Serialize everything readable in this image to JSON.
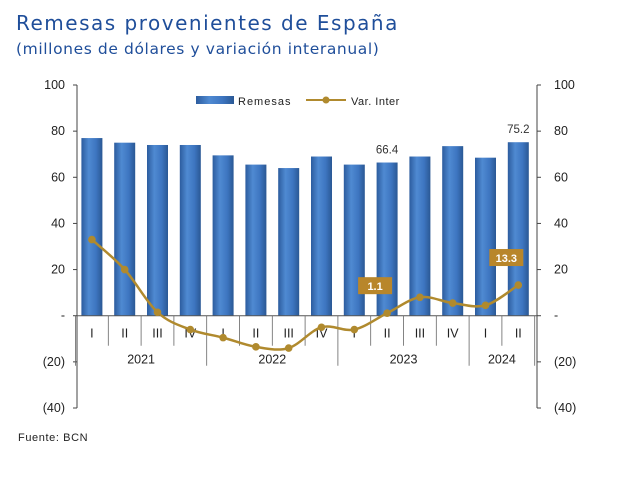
{
  "title": "Remesas provenientes de España",
  "subtitle": "(millones de dólares y variación interanual)",
  "source": "Fuente: BCN",
  "chart_data": {
    "type": "bar+line",
    "categories": [
      "I",
      "II",
      "III",
      "IV",
      "I",
      "II",
      "III",
      "IV",
      "I",
      "II",
      "III",
      "IV",
      "I",
      "II"
    ],
    "years": [
      {
        "label": "2021",
        "start": 0,
        "end": 3
      },
      {
        "label": "2022",
        "start": 4,
        "end": 7
      },
      {
        "label": "2023",
        "start": 8,
        "end": 11
      },
      {
        "label": "2024",
        "start": 12,
        "end": 13
      }
    ],
    "series": [
      {
        "name": "Remesas",
        "type": "bar",
        "axis": "left",
        "values": [
          77.0,
          75.0,
          74.0,
          74.0,
          69.5,
          65.5,
          64.0,
          69.0,
          65.5,
          66.4,
          69.0,
          73.5,
          68.5,
          75.2
        ]
      },
      {
        "name": "Var. Inter",
        "type": "line",
        "axis": "right",
        "values": [
          33.0,
          20.0,
          1.5,
          -6.0,
          -9.5,
          -13.5,
          -14.0,
          -5.0,
          -6.0,
          1.1,
          8.0,
          5.5,
          4.5,
          13.3
        ]
      }
    ],
    "bar_labels": [
      {
        "index": 9,
        "text": "66.4"
      },
      {
        "index": 13,
        "text": "75.2"
      }
    ],
    "line_labels": [
      {
        "index": 9,
        "text": "1.1"
      },
      {
        "index": 13,
        "text": "13.3"
      }
    ],
    "y_left": {
      "min": -40,
      "max": 100,
      "ticks": [
        {
          "v": 100,
          "t": "100"
        },
        {
          "v": 80,
          "t": "80"
        },
        {
          "v": 60,
          "t": "60"
        },
        {
          "v": 40,
          "t": "40"
        },
        {
          "v": 20,
          "t": "20"
        },
        {
          "v": 0,
          "t": "-"
        },
        {
          "v": -20,
          "t": "(20)"
        },
        {
          "v": -40,
          "t": "(40)"
        }
      ]
    },
    "y_right": {
      "min": -40,
      "max": 100,
      "ticks": [
        {
          "v": 100,
          "t": "100"
        },
        {
          "v": 80,
          "t": "80"
        },
        {
          "v": 60,
          "t": "60"
        },
        {
          "v": 40,
          "t": "40"
        },
        {
          "v": 20,
          "t": "20"
        },
        {
          "v": 0,
          "t": "-"
        },
        {
          "v": -20,
          "t": "(20)"
        },
        {
          "v": -40,
          "t": "(40)"
        }
      ]
    },
    "legend_position": "top-center",
    "grid": false,
    "colors": {
      "bar": "#3d75c0",
      "bar_dark": "#2a5a9c",
      "line": "#b08a2e",
      "label_box": "#b8862b"
    }
  }
}
